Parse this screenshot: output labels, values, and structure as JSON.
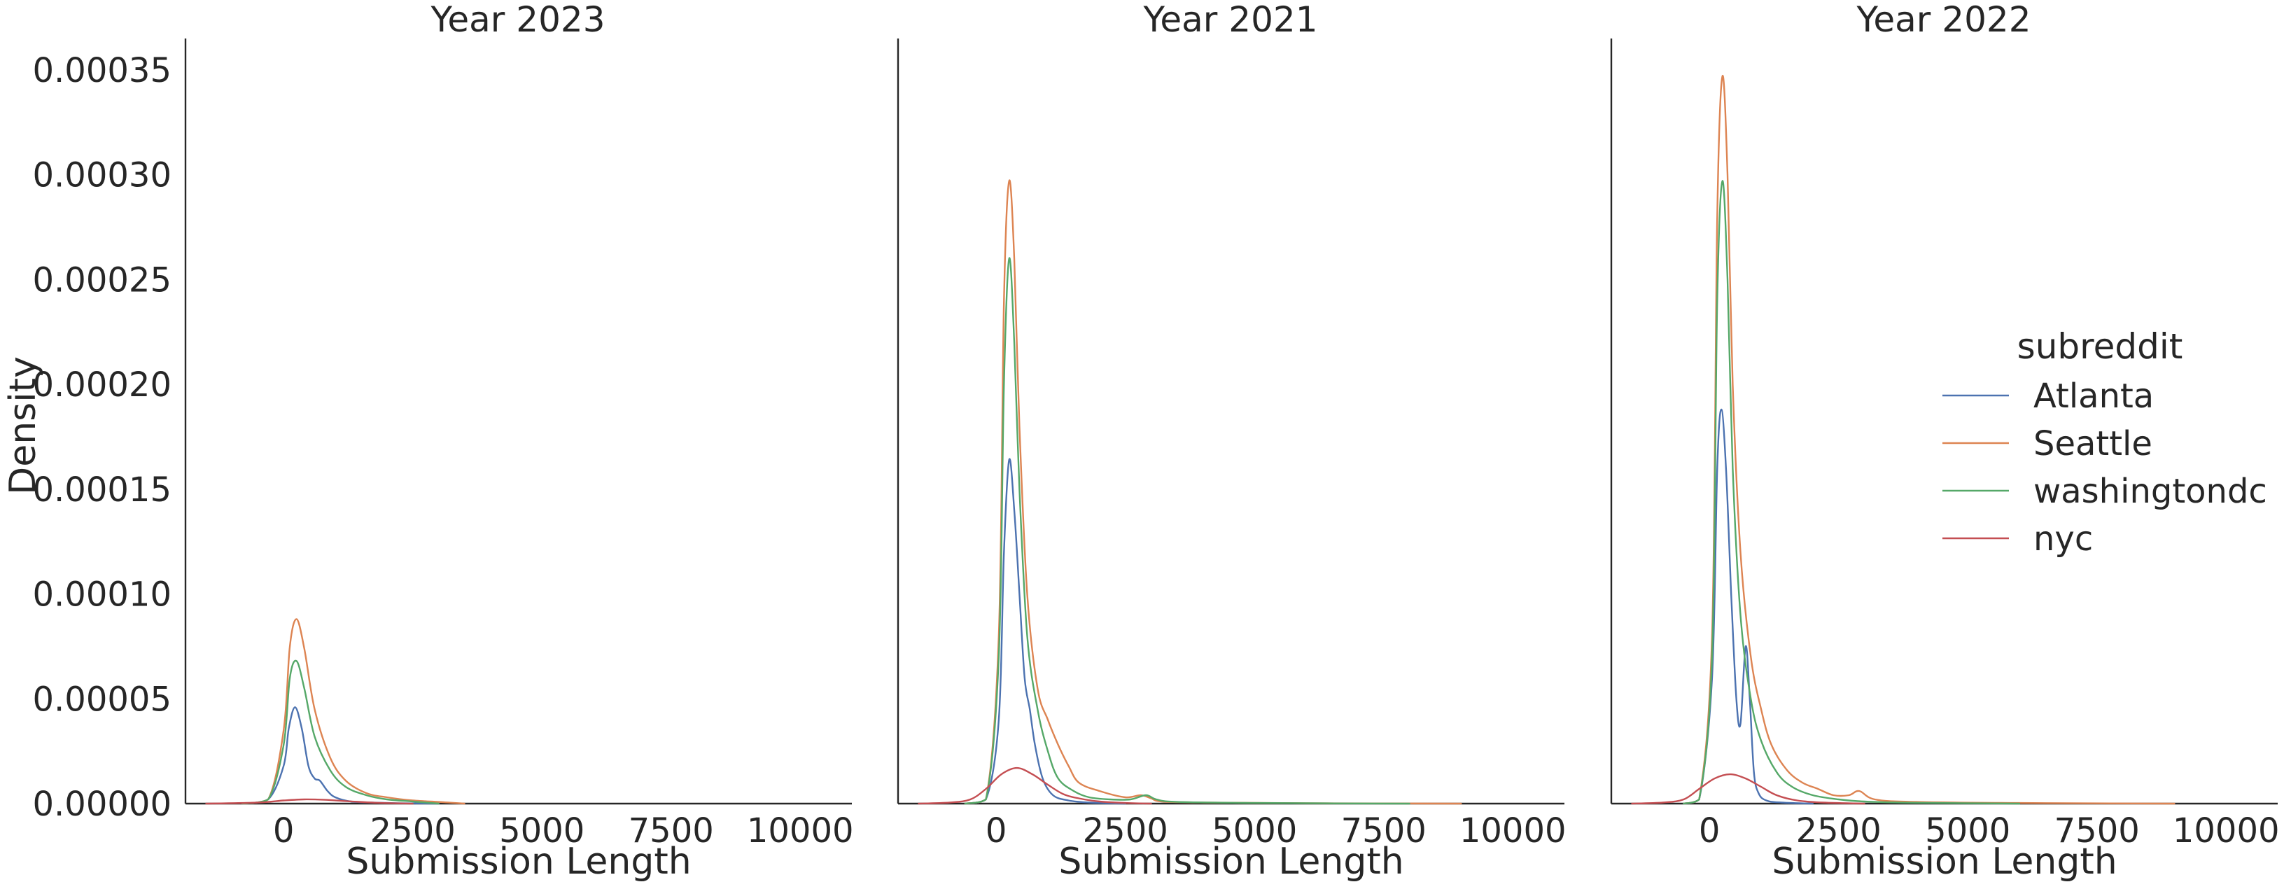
{
  "chart_data": [
    {
      "type": "line",
      "title": "Year 2023",
      "xlabel": "Submission Length",
      "ylabel": "Density",
      "xlim": [
        -1900,
        11000
      ],
      "ylim": [
        0,
        0.000365
      ],
      "xticks": [
        0,
        2500,
        5000,
        7500,
        10000
      ],
      "yticks": [
        0,
        5e-05,
        0.0001,
        0.00015,
        0.0002,
        0.00025,
        0.0003,
        0.00035
      ],
      "ytick_labels": [
        "0.00000",
        "0.00005",
        "0.00010",
        "0.00015",
        "0.00020",
        "0.00025",
        "0.00030",
        "0.00035"
      ],
      "grid": false,
      "series": [
        {
          "name": "Atlanta",
          "x": [
            -800,
            -300,
            0,
            100,
            220,
            350,
            480,
            600,
            700,
            850,
            1000,
            1300,
            1700,
            2200,
            3000
          ],
          "y": [
            0,
            2e-06,
            1.8e-05,
            3.6e-05,
            4.6e-05,
            3.6e-05,
            1.8e-05,
            1.2e-05,
            1.1e-05,
            6e-06,
            3e-06,
            1e-06,
            5e-07,
            2e-07,
            0
          ]
        },
        {
          "name": "Seattle",
          "x": [
            -800,
            -300,
            0,
            120,
            250,
            400,
            600,
            900,
            1200,
            1600,
            2000,
            2500,
            3000,
            3500
          ],
          "y": [
            0,
            2e-06,
            3.5e-05,
            7.5e-05,
            8.8e-05,
            7.4e-05,
            4.5e-05,
            2.2e-05,
            1.1e-05,
            5e-06,
            3e-06,
            1.5e-06,
            8e-07,
            0
          ]
        },
        {
          "name": "washingtondc",
          "x": [
            -800,
            -300,
            0,
            120,
            250,
            400,
            600,
            900,
            1200,
            1600,
            2000,
            2500,
            3000
          ],
          "y": [
            0,
            2e-06,
            2.8e-05,
            6e-05,
            6.8e-05,
            5.5e-05,
            3.2e-05,
            1.6e-05,
            8e-06,
            4e-06,
            2e-06,
            1e-06,
            0
          ]
        },
        {
          "name": "nyc",
          "x": [
            -1500,
            -500,
            0,
            400,
            800,
            1200,
            1800,
            2500
          ],
          "y": [
            0,
            5e-07,
            1.5e-06,
            2e-06,
            1.8e-06,
            1.2e-06,
            4e-07,
            0
          ]
        }
      ]
    },
    {
      "type": "line",
      "title": "Year 2021",
      "xlabel": "Submission Length",
      "ylabel": "",
      "xlim": [
        -1900,
        11000
      ],
      "ylim": [
        0,
        0.000365
      ],
      "xticks": [
        0,
        2500,
        5000,
        7500,
        10000
      ],
      "grid": false,
      "series": [
        {
          "name": "Atlanta",
          "x": [
            -600,
            -200,
            50,
            150,
            250,
            350,
            450,
            550,
            650,
            750,
            900,
            1100,
            1400,
            1800,
            2500
          ],
          "y": [
            0,
            2e-06,
            4e-05,
            0.00012,
            0.000164,
            0.00014,
            0.0001,
            6e-05,
            4.5e-05,
            2.8e-05,
            1.2e-05,
            4e-06,
            1.5e-06,
            5e-07,
            0
          ]
        },
        {
          "name": "Seattle",
          "x": [
            -600,
            -200,
            50,
            150,
            250,
            350,
            450,
            600,
            800,
            1000,
            1200,
            1400,
            1600,
            2000,
            2500,
            2800,
            3000,
            3200,
            4000,
            6000,
            9000
          ],
          "y": [
            0,
            2e-06,
            8e-05,
            0.00024,
            0.000297,
            0.00026,
            0.00018,
            0.0001,
            5.5e-05,
            4e-05,
            2.8e-05,
            1.8e-05,
            1e-05,
            6e-06,
            3e-06,
            4e-06,
            2.5e-06,
            1e-06,
            5e-07,
            2e-07,
            0
          ]
        },
        {
          "name": "washingtondc",
          "x": [
            -600,
            -200,
            50,
            150,
            250,
            350,
            450,
            600,
            800,
            1000,
            1200,
            1500,
            1800,
            2200,
            2600,
            2900,
            3100,
            3500,
            5000,
            8000
          ],
          "y": [
            0,
            2e-06,
            7e-05,
            0.0002,
            0.00026,
            0.00022,
            0.00015,
            8e-05,
            4.5e-05,
            2.5e-05,
            1.2e-05,
            6e-06,
            3e-06,
            2e-06,
            2e-06,
            4e-06,
            2e-06,
            8e-07,
            3e-07,
            0
          ]
        },
        {
          "name": "nyc",
          "x": [
            -1500,
            -900,
            -500,
            -200,
            100,
            400,
            700,
            1000,
            1300,
            1600,
            2000,
            2500,
            3000
          ],
          "y": [
            0,
            5e-07,
            2e-06,
            7e-06,
            1.4e-05,
            1.7e-05,
            1.4e-05,
            9e-06,
            4.5e-06,
            2.5e-06,
            1e-06,
            3e-07,
            0
          ]
        }
      ]
    },
    {
      "type": "line",
      "title": "Year 2022",
      "xlabel": "Submission Length",
      "ylabel": "",
      "xlim": [
        -1900,
        11000
      ],
      "ylim": [
        0,
        0.000365
      ],
      "xticks": [
        0,
        2500,
        5000,
        7500,
        10000
      ],
      "grid": false,
      "series": [
        {
          "name": "Atlanta",
          "x": [
            -500,
            -200,
            50,
            150,
            230,
            320,
            420,
            520,
            600,
            700,
            780,
            860,
            950,
            1100,
            1400,
            2000
          ],
          "y": [
            0,
            2e-06,
            6e-05,
            0.00016,
            0.000188,
            0.00016,
            0.0001,
            5e-05,
            3.8e-05,
            7.5e-05,
            5e-05,
            1.5e-05,
            5e-06,
            1.5e-06,
            5e-07,
            0
          ]
        },
        {
          "name": "Seattle",
          "x": [
            -500,
            -200,
            50,
            150,
            250,
            350,
            450,
            600,
            800,
            1000,
            1200,
            1500,
            1800,
            2100,
            2400,
            2700,
            2900,
            3200,
            4000,
            6000,
            9000
          ],
          "y": [
            0,
            2e-06,
            8e-05,
            0.00028,
            0.000347,
            0.0003,
            0.0002,
            0.00012,
            7e-05,
            4.5e-05,
            2.8e-05,
            1.6e-05,
            1e-05,
            7e-06,
            4e-06,
            4e-06,
            6e-06,
            2e-06,
            8e-07,
            3e-07,
            0
          ]
        },
        {
          "name": "washingtondc",
          "x": [
            -500,
            -200,
            50,
            150,
            250,
            350,
            450,
            600,
            800,
            1000,
            1300,
            1600,
            2000,
            2500,
            3000,
            4000,
            6000
          ],
          "y": [
            0,
            2e-06,
            7e-05,
            0.00024,
            0.000297,
            0.00025,
            0.00016,
            9e-05,
            5e-05,
            3e-05,
            1.5e-05,
            8e-06,
            4e-06,
            2e-06,
            1e-06,
            4e-07,
            0
          ]
        },
        {
          "name": "nyc",
          "x": [
            -1500,
            -900,
            -500,
            -200,
            100,
            400,
            700,
            1000,
            1300,
            1700,
            2200,
            3000
          ],
          "y": [
            0,
            5e-07,
            2e-06,
            7e-06,
            1.2e-05,
            1.4e-05,
            1.2e-05,
            8e-06,
            4e-06,
            1.5e-06,
            5e-07,
            0
          ]
        }
      ]
    }
  ],
  "legend": {
    "title": "subreddit",
    "placement": "right",
    "entries": [
      "Atlanta",
      "Seattle",
      "washingtondc",
      "nyc"
    ]
  },
  "colors": {
    "Atlanta": "#4c72b0",
    "Seattle": "#dd8452",
    "washingtondc": "#55a868",
    "nyc": "#c44e52"
  }
}
